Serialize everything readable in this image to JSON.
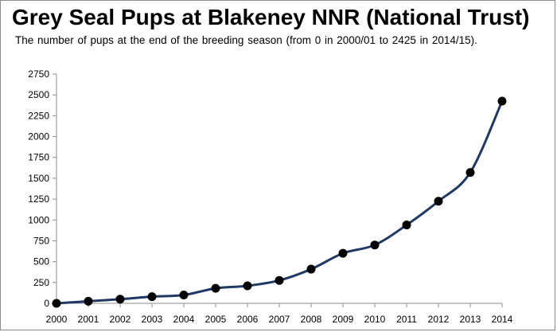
{
  "chart_data": {
    "type": "line",
    "title": "Grey Seal Pups at Blakeney NNR (National Trust)",
    "subtitle": "The number of pups at the end of the breeding season (from 0 in 2000/01 to 2425 in 2014/15).",
    "xlabel": "",
    "ylabel": "",
    "x": [
      2000,
      2001,
      2002,
      2003,
      2004,
      2005,
      2006,
      2007,
      2008,
      2009,
      2010,
      2011,
      2012,
      2013,
      2014
    ],
    "series": [
      {
        "values": [
          0,
          25,
          50,
          80,
          100,
          180,
          210,
          275,
          410,
          600,
          700,
          940,
          1225,
          1570,
          2425
        ]
      }
    ],
    "ylim": [
      0,
      2750
    ],
    "yticks": [
      0,
      250,
      500,
      750,
      1000,
      1250,
      1500,
      1750,
      2000,
      2250,
      2500,
      2750
    ],
    "grid": false,
    "legend": "none",
    "line_color": "#1f3864",
    "marker_color": "#000000"
  }
}
